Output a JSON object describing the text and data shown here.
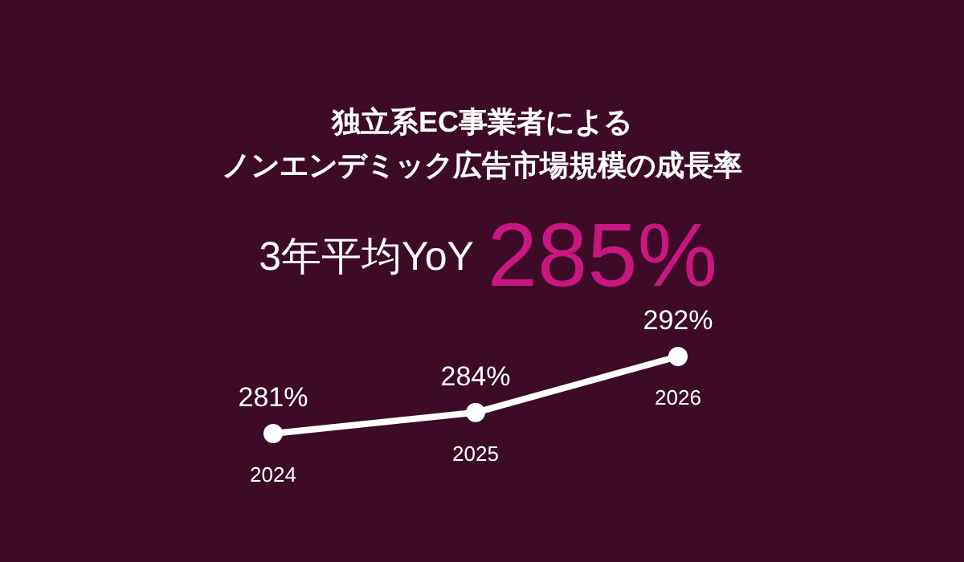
{
  "chart_data": {
    "type": "line",
    "title": "独立系EC事業者による",
    "subtitle": "ノンエンデミック広告市場規模の成長率",
    "annotations": [
      "3年平均YoY",
      "285%"
    ],
    "categories": [
      "2024",
      "2025",
      "2026"
    ],
    "series": [
      {
        "color": "#ffffff",
        "values": [
          281,
          284,
          292
        ],
        "value_labels": [
          "281%",
          "284%",
          "292%"
        ]
      }
    ],
    "marker": "circle",
    "line_style": "solid"
  }
}
